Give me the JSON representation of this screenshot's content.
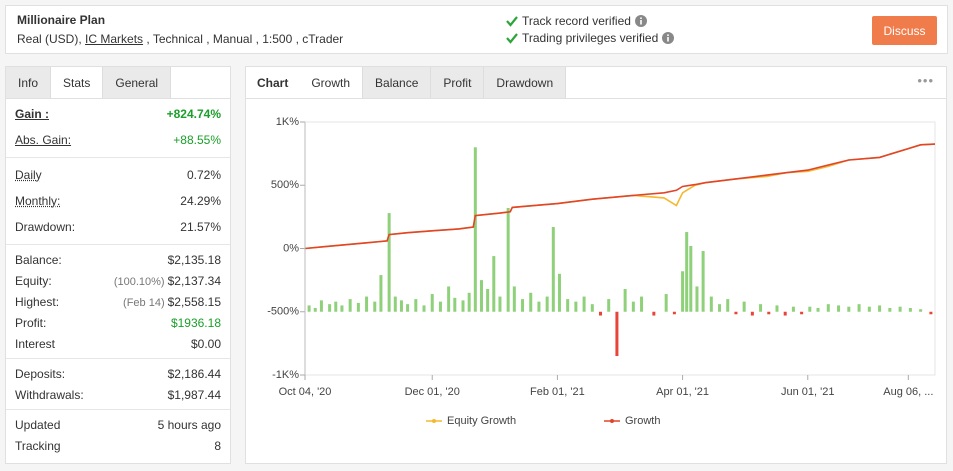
{
  "header": {
    "title": "Millionaire Plan",
    "account": "Real (USD),",
    "broker": "IC Markets",
    "details": ", Technical , Manual , 1:500 , cTrader",
    "verifications": [
      "Track record verified",
      "Trading privileges verified"
    ],
    "button": "Discuss"
  },
  "stats": {
    "tabs": [
      "Info",
      "Stats",
      "General"
    ],
    "active_tab": "Stats",
    "groups": [
      [
        {
          "label": "Gain :",
          "value": "+824.74%",
          "color": "#1a9f29",
          "bold": true,
          "underline": true
        },
        {
          "label": "Abs. Gain:",
          "value": "+88.55%",
          "color": "#1a9f29",
          "underline": true
        }
      ],
      [
        {
          "label": "Daily",
          "value": "0.72%",
          "underline": true
        },
        {
          "label": "Monthly:",
          "value": "24.29%",
          "underline": true
        },
        {
          "label": "Drawdown:",
          "value": "21.57%"
        }
      ],
      [
        {
          "label": "Balance:",
          "value": "$2,135.18"
        },
        {
          "label": "Equity:",
          "note": "(100.10%)",
          "value": "$2,137.34"
        },
        {
          "label": "Highest:",
          "note": "(Feb 14)",
          "value": "$2,558.15"
        },
        {
          "label": "Profit:",
          "value": "$1936.18",
          "color": "#1a9f29"
        },
        {
          "label": "Interest",
          "value": "$0.00"
        }
      ],
      [
        {
          "label": "Deposits:",
          "value": "$2,186.44"
        },
        {
          "label": "Withdrawals:",
          "value": "$1,987.44"
        }
      ],
      [
        {
          "label": "Updated",
          "value": "5 hours ago"
        },
        {
          "label": "Tracking",
          "value": "8"
        }
      ]
    ]
  },
  "chart": {
    "type": "line",
    "label": "Chart",
    "tabs": [
      "Growth",
      "Balance",
      "Profit",
      "Drawdown"
    ],
    "active_tab": "Growth",
    "xlim": [
      0,
      307
    ],
    "ylim": [
      -1000,
      1000
    ],
    "y2lim": [
      -50,
      150
    ],
    "yticks": [
      {
        "value": 1000,
        "label": "1K%"
      },
      {
        "value": 500,
        "label": "500%"
      },
      {
        "value": 0,
        "label": "0%"
      },
      {
        "value": -500,
        "label": "-500%"
      },
      {
        "value": -1000,
        "label": "-1K%"
      }
    ],
    "xticks": [
      {
        "value": 0,
        "label": "Oct 04, '20"
      },
      {
        "value": 62,
        "label": "Dec 01, '20"
      },
      {
        "value": 123,
        "label": "Feb 01, '21"
      },
      {
        "value": 184,
        "label": "Apr 01, '21"
      },
      {
        "value": 245,
        "label": "Jun 01, '21"
      },
      {
        "value": 294,
        "label": "Aug 06, ..."
      }
    ],
    "x": [
      0,
      10,
      20,
      30,
      40,
      41,
      50,
      62,
      75,
      82,
      83,
      95,
      100,
      101,
      115,
      123,
      140,
      160,
      175,
      181,
      184,
      190,
      195,
      210,
      225,
      235,
      245,
      255,
      265,
      280,
      294,
      300,
      307
    ],
    "series": [
      {
        "name": "Equity Growth",
        "color": "#f5b82e",
        "values": [
          0,
          15,
          30,
          45,
          60,
          110,
          125,
          140,
          155,
          170,
          260,
          280,
          290,
          325,
          345,
          355,
          390,
          420,
          400,
          340,
          440,
          500,
          520,
          550,
          570,
          600,
          610,
          650,
          700,
          720,
          790,
          820,
          825
        ]
      },
      {
        "name": "Growth",
        "color": "#e0452b",
        "values": [
          0,
          15,
          30,
          45,
          60,
          110,
          125,
          140,
          155,
          170,
          260,
          280,
          290,
          325,
          345,
          355,
          390,
          420,
          440,
          460,
          490,
          505,
          520,
          550,
          580,
          600,
          620,
          660,
          700,
          720,
          790,
          820,
          825
        ]
      }
    ],
    "bars": {
      "axis": "y2",
      "color_up": "#8fd07a",
      "color_down": "#e8443a",
      "x": [
        2,
        5,
        8,
        12,
        15,
        18,
        22,
        26,
        30,
        34,
        37,
        41,
        44,
        47,
        50,
        54,
        58,
        62,
        66,
        70,
        73,
        77,
        80,
        83,
        86,
        89,
        92,
        95,
        99,
        102,
        106,
        110,
        114,
        118,
        121,
        124,
        128,
        132,
        136,
        140,
        144,
        148,
        152,
        156,
        160,
        164,
        170,
        176,
        180,
        184,
        186,
        188,
        191,
        194,
        198,
        202,
        206,
        210,
        214,
        218,
        222,
        226,
        230,
        234,
        238,
        242,
        246,
        250,
        255,
        260,
        265,
        270,
        275,
        280,
        285,
        290,
        295,
        300,
        305
      ],
      "values": [
        5,
        3,
        9,
        6,
        8,
        5,
        10,
        7,
        12,
        8,
        29,
        78,
        12,
        9,
        6,
        10,
        5,
        14,
        8,
        20,
        11,
        9,
        15,
        130,
        25,
        18,
        44,
        12,
        82,
        20,
        10,
        15,
        8,
        12,
        67,
        30,
        10,
        8,
        12,
        6,
        -3,
        10,
        -35,
        18,
        8,
        12,
        -3,
        14,
        -2,
        32,
        63,
        52,
        20,
        48,
        12,
        6,
        10,
        -2,
        8,
        -3,
        6,
        -2,
        5,
        -3,
        4,
        -2,
        4,
        3,
        6,
        5,
        4,
        6,
        4,
        5,
        3,
        4,
        3,
        2,
        -2
      ]
    }
  }
}
